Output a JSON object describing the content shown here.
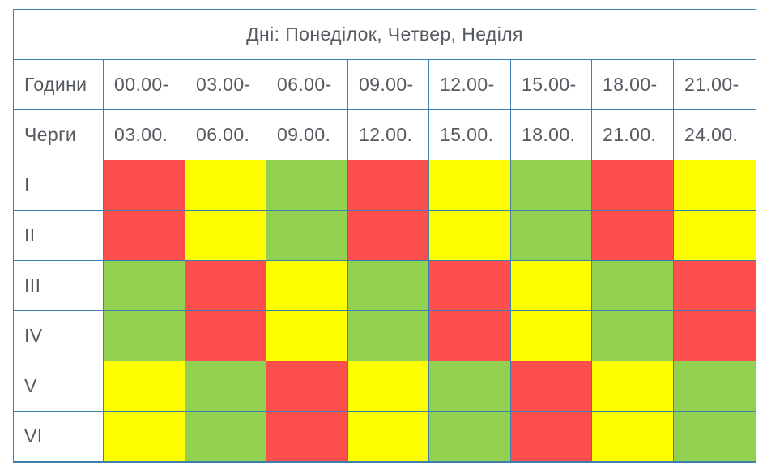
{
  "title": "Дні: Понеділок, Четвер, Неділя",
  "header": {
    "hours_label": "Години",
    "queues_label": "Черги",
    "slot_starts": [
      "00.00-",
      "03.00-",
      "06.00-",
      "09.00-",
      "12.00-",
      "15.00-",
      "18.00-",
      "21.00-"
    ],
    "slot_ends": [
      "03.00.",
      "06.00.",
      "09.00.",
      "12.00.",
      "15.00.",
      "18.00.",
      "21.00.",
      "24.00."
    ]
  },
  "status_colors": {
    "red": "#fe4f4f",
    "yellow": "#ffff00",
    "green": "#92d14f"
  },
  "queues": [
    {
      "name": "I",
      "slots": [
        "red",
        "yellow",
        "green",
        "red",
        "yellow",
        "green",
        "red",
        "yellow"
      ]
    },
    {
      "name": "II",
      "slots": [
        "red",
        "yellow",
        "green",
        "red",
        "yellow",
        "green",
        "red",
        "yellow"
      ]
    },
    {
      "name": "III",
      "slots": [
        "green",
        "red",
        "yellow",
        "green",
        "red",
        "yellow",
        "green",
        "red"
      ]
    },
    {
      "name": "IV",
      "slots": [
        "green",
        "red",
        "yellow",
        "green",
        "red",
        "yellow",
        "green",
        "red"
      ]
    },
    {
      "name": "V",
      "slots": [
        "yellow",
        "green",
        "red",
        "yellow",
        "green",
        "red",
        "yellow",
        "green"
      ]
    },
    {
      "name": "VI",
      "slots": [
        "yellow",
        "green",
        "red",
        "yellow",
        "green",
        "red",
        "yellow",
        "green"
      ]
    }
  ]
}
